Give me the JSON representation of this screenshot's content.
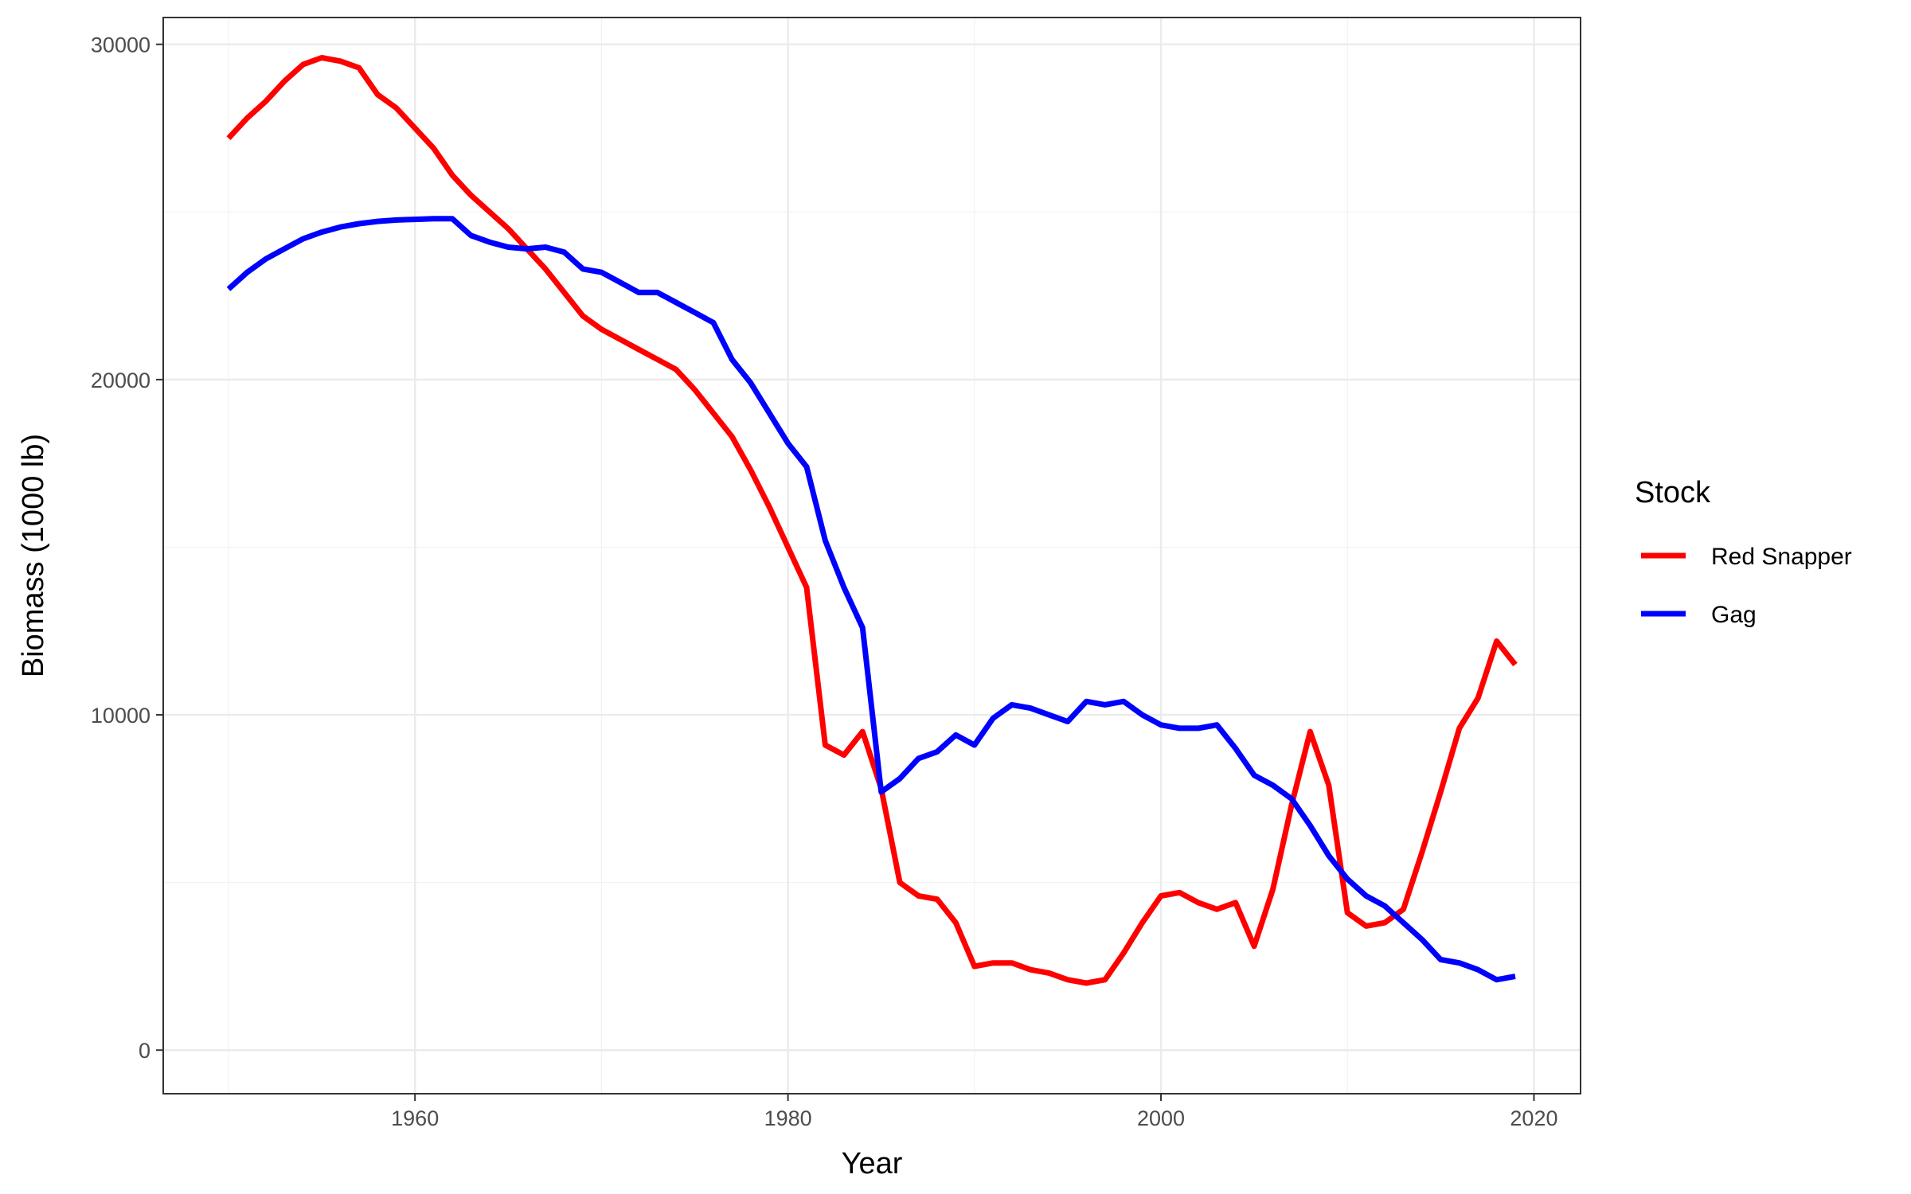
{
  "chart_data": {
    "type": "line",
    "xlabel": "Year",
    "ylabel": "Biomass (1000 lb)",
    "xlim": [
      1946.5,
      2022.5
    ],
    "ylim": [
      -1300,
      30800
    ],
    "x_ticks": [
      1960,
      1980,
      2000,
      2020
    ],
    "x_tick_labels": [
      "1960",
      "1980",
      "2000",
      "2020"
    ],
    "x_minor_ticks": [
      1950,
      1970,
      1990,
      2010
    ],
    "y_ticks": [
      0,
      10000,
      20000,
      30000
    ],
    "y_tick_labels": [
      "0",
      "10000",
      "20000",
      "30000"
    ],
    "y_minor_ticks": [
      5000,
      15000,
      25000
    ],
    "grid": true,
    "legend": {
      "title": "Stock",
      "position": "right"
    },
    "series": [
      {
        "name": "Red Snapper",
        "color": "#ff0000",
        "x": [
          1950,
          1951,
          1952,
          1953,
          1954,
          1955,
          1956,
          1957,
          1958,
          1959,
          1960,
          1961,
          1962,
          1963,
          1964,
          1965,
          1966,
          1967,
          1968,
          1969,
          1970,
          1971,
          1972,
          1973,
          1974,
          1975,
          1976,
          1977,
          1978,
          1979,
          1980,
          1981,
          1982,
          1983,
          1984,
          1985,
          1986,
          1987,
          1988,
          1989,
          1990,
          1991,
          1992,
          1993,
          1994,
          1995,
          1996,
          1997,
          1998,
          1999,
          2000,
          2001,
          2002,
          2003,
          2004,
          2005,
          2006,
          2007,
          2008,
          2009,
          2010,
          2011,
          2012,
          2013,
          2014,
          2015,
          2016,
          2017,
          2018,
          2019
        ],
        "values": [
          27200,
          27800,
          28300,
          28900,
          29400,
          29600,
          29500,
          29300,
          28500,
          28100,
          27500,
          26900,
          26100,
          25500,
          25000,
          24500,
          23900,
          23300,
          22600,
          21900,
          21500,
          21200,
          20900,
          20600,
          20300,
          19700,
          19000,
          18300,
          17300,
          16200,
          15000,
          13800,
          9100,
          8800,
          9500,
          7800,
          5000,
          4600,
          4500,
          3800,
          2500,
          2600,
          2600,
          2400,
          2300,
          2100,
          2000,
          2100,
          2900,
          3800,
          4600,
          4700,
          4400,
          4200,
          4400,
          3100,
          4800,
          7300,
          9500,
          7900,
          4100,
          3700,
          3800,
          4200,
          5900,
          7700,
          9600,
          10500,
          12200,
          11500
        ]
      },
      {
        "name": "Gag",
        "color": "#0000ff",
        "x": [
          1950,
          1951,
          1952,
          1953,
          1954,
          1955,
          1956,
          1957,
          1958,
          1959,
          1960,
          1961,
          1962,
          1963,
          1964,
          1965,
          1966,
          1967,
          1968,
          1969,
          1970,
          1971,
          1972,
          1973,
          1974,
          1975,
          1976,
          1977,
          1978,
          1979,
          1980,
          1981,
          1982,
          1983,
          1984,
          1985,
          1986,
          1987,
          1988,
          1989,
          1990,
          1991,
          1992,
          1993,
          1994,
          1995,
          1996,
          1997,
          1998,
          1999,
          2000,
          2001,
          2002,
          2003,
          2004,
          2005,
          2006,
          2007,
          2008,
          2009,
          2010,
          2011,
          2012,
          2013,
          2014,
          2015,
          2016,
          2017,
          2018,
          2019
        ],
        "values": [
          22700,
          23200,
          23600,
          23900,
          24200,
          24400,
          24550,
          24650,
          24720,
          24760,
          24780,
          24800,
          24800,
          24300,
          24100,
          23950,
          23900,
          23950,
          23800,
          23300,
          23200,
          22900,
          22600,
          22600,
          22300,
          22000,
          21700,
          20600,
          19900,
          19000,
          18100,
          17400,
          15200,
          13800,
          12600,
          7700,
          8100,
          8700,
          8900,
          9400,
          9100,
          9900,
          10300,
          10200,
          10000,
          9800,
          10400,
          10300,
          10400,
          10000,
          9700,
          9600,
          9600,
          9700,
          9000,
          8200,
          7900,
          7500,
          6700,
          5800,
          5100,
          4600,
          4300,
          3800,
          3300,
          2700,
          2600,
          2400,
          2100,
          2200
        ]
      }
    ]
  }
}
